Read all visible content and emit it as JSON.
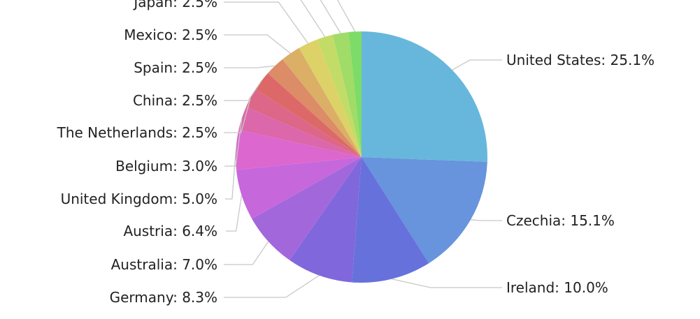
{
  "chart_data": {
    "type": "pie",
    "title": "",
    "slices": [
      {
        "label": "United States: 25.1%",
        "value": 25.1,
        "color": "#67b7dc"
      },
      {
        "label": "Czechia: 15.1%",
        "value": 15.1,
        "color": "#6794dc"
      },
      {
        "label": "Ireland: 10.0%",
        "value": 10.0,
        "color": "#6771dc"
      },
      {
        "label": "Germany: 8.3%",
        "value": 8.3,
        "color": "#8067dc"
      },
      {
        "label": "Australia: 7.0%",
        "value": 7.0,
        "color": "#a367dc"
      },
      {
        "label": "Austria: 6.4%",
        "value": 6.4,
        "color": "#c767dc"
      },
      {
        "label": "United Kingdom: 5.0%",
        "value": 5.0,
        "color": "#dc67ce"
      },
      {
        "label": "Belgium: 3.0%",
        "value": 3.0,
        "color": "#dc67ab"
      },
      {
        "label": "The Netherlands: 2.5%",
        "value": 2.5,
        "color": "#dc6788"
      },
      {
        "label": "China: 2.5%",
        "value": 2.5,
        "color": "#dc6967"
      },
      {
        "label": "Spain: 2.5%",
        "value": 2.5,
        "color": "#dc8c67"
      },
      {
        "label": "Mexico: 2.5%",
        "value": 2.5,
        "color": "#dcaf67"
      },
      {
        "label": "Japan: 2.5%",
        "value": 2.5,
        "color": "#dcd267"
      },
      {
        "label": "",
        "value": 2.0,
        "color": "#c3dc67"
      },
      {
        "label": "",
        "value": 2.0,
        "color": "#a0dc67"
      },
      {
        "label": "",
        "value": 1.6,
        "color": "#7ddc67"
      }
    ]
  }
}
